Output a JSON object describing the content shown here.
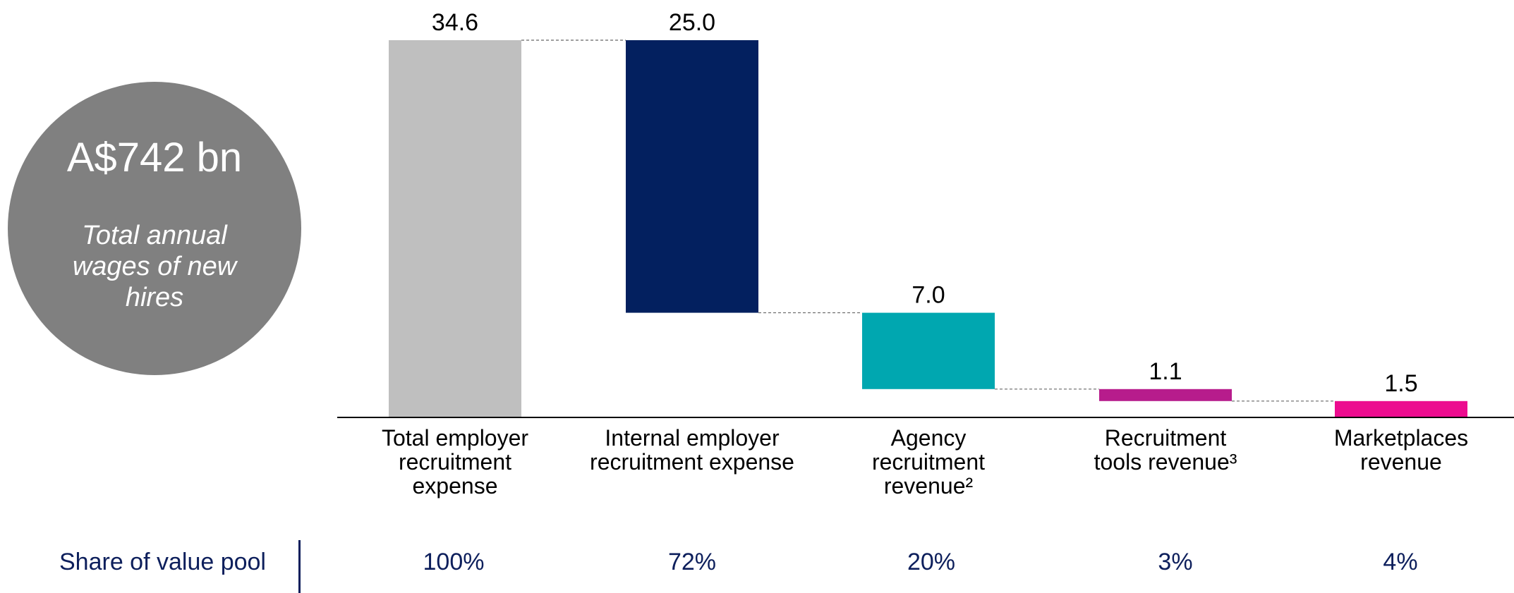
{
  "headline": {
    "value": "A$742 bn",
    "caption": "Total annual wages of new hires"
  },
  "share_row": {
    "label": "Share of value pool",
    "values": [
      "100%",
      "72%",
      "20%",
      "3%",
      "4%"
    ]
  },
  "chart_data": {
    "type": "bar",
    "subtype": "waterfall",
    "title": "",
    "xlabel": "",
    "ylabel": "",
    "ylim": [
      0,
      34.6
    ],
    "grid": false,
    "categories": [
      "Total employer recruitment expense",
      "Internal employer recruitment expense",
      "Agency recruitment revenue²",
      "Recruitment tools revenue³",
      "Marketplaces revenue"
    ],
    "category_lines": [
      [
        "Total employer",
        "recruitment",
        "expense"
      ],
      [
        "Internal employer",
        "recruitment expense"
      ],
      [
        "Agency",
        "recruitment",
        "revenue²"
      ],
      [
        "Recruitment",
        "tools revenue³"
      ],
      [
        "Marketplaces",
        "revenue"
      ]
    ],
    "values": [
      34.6,
      25.0,
      7.0,
      1.1,
      1.5
    ],
    "value_labels": [
      "34.6",
      "25.0",
      "7.0",
      "1.1",
      "1.5"
    ],
    "bar_ranges": [
      [
        0,
        34.6
      ],
      [
        9.6,
        34.6
      ],
      [
        2.6,
        9.6
      ],
      [
        1.5,
        2.6
      ],
      [
        0,
        1.5
      ]
    ],
    "colors": [
      "#bfbfbf",
      "#03205f",
      "#00a7b0",
      "#b71c8c",
      "#ec0c8f"
    ],
    "connector_color": "#666666",
    "axis_color": "#000000",
    "label_color": "#000000"
  }
}
